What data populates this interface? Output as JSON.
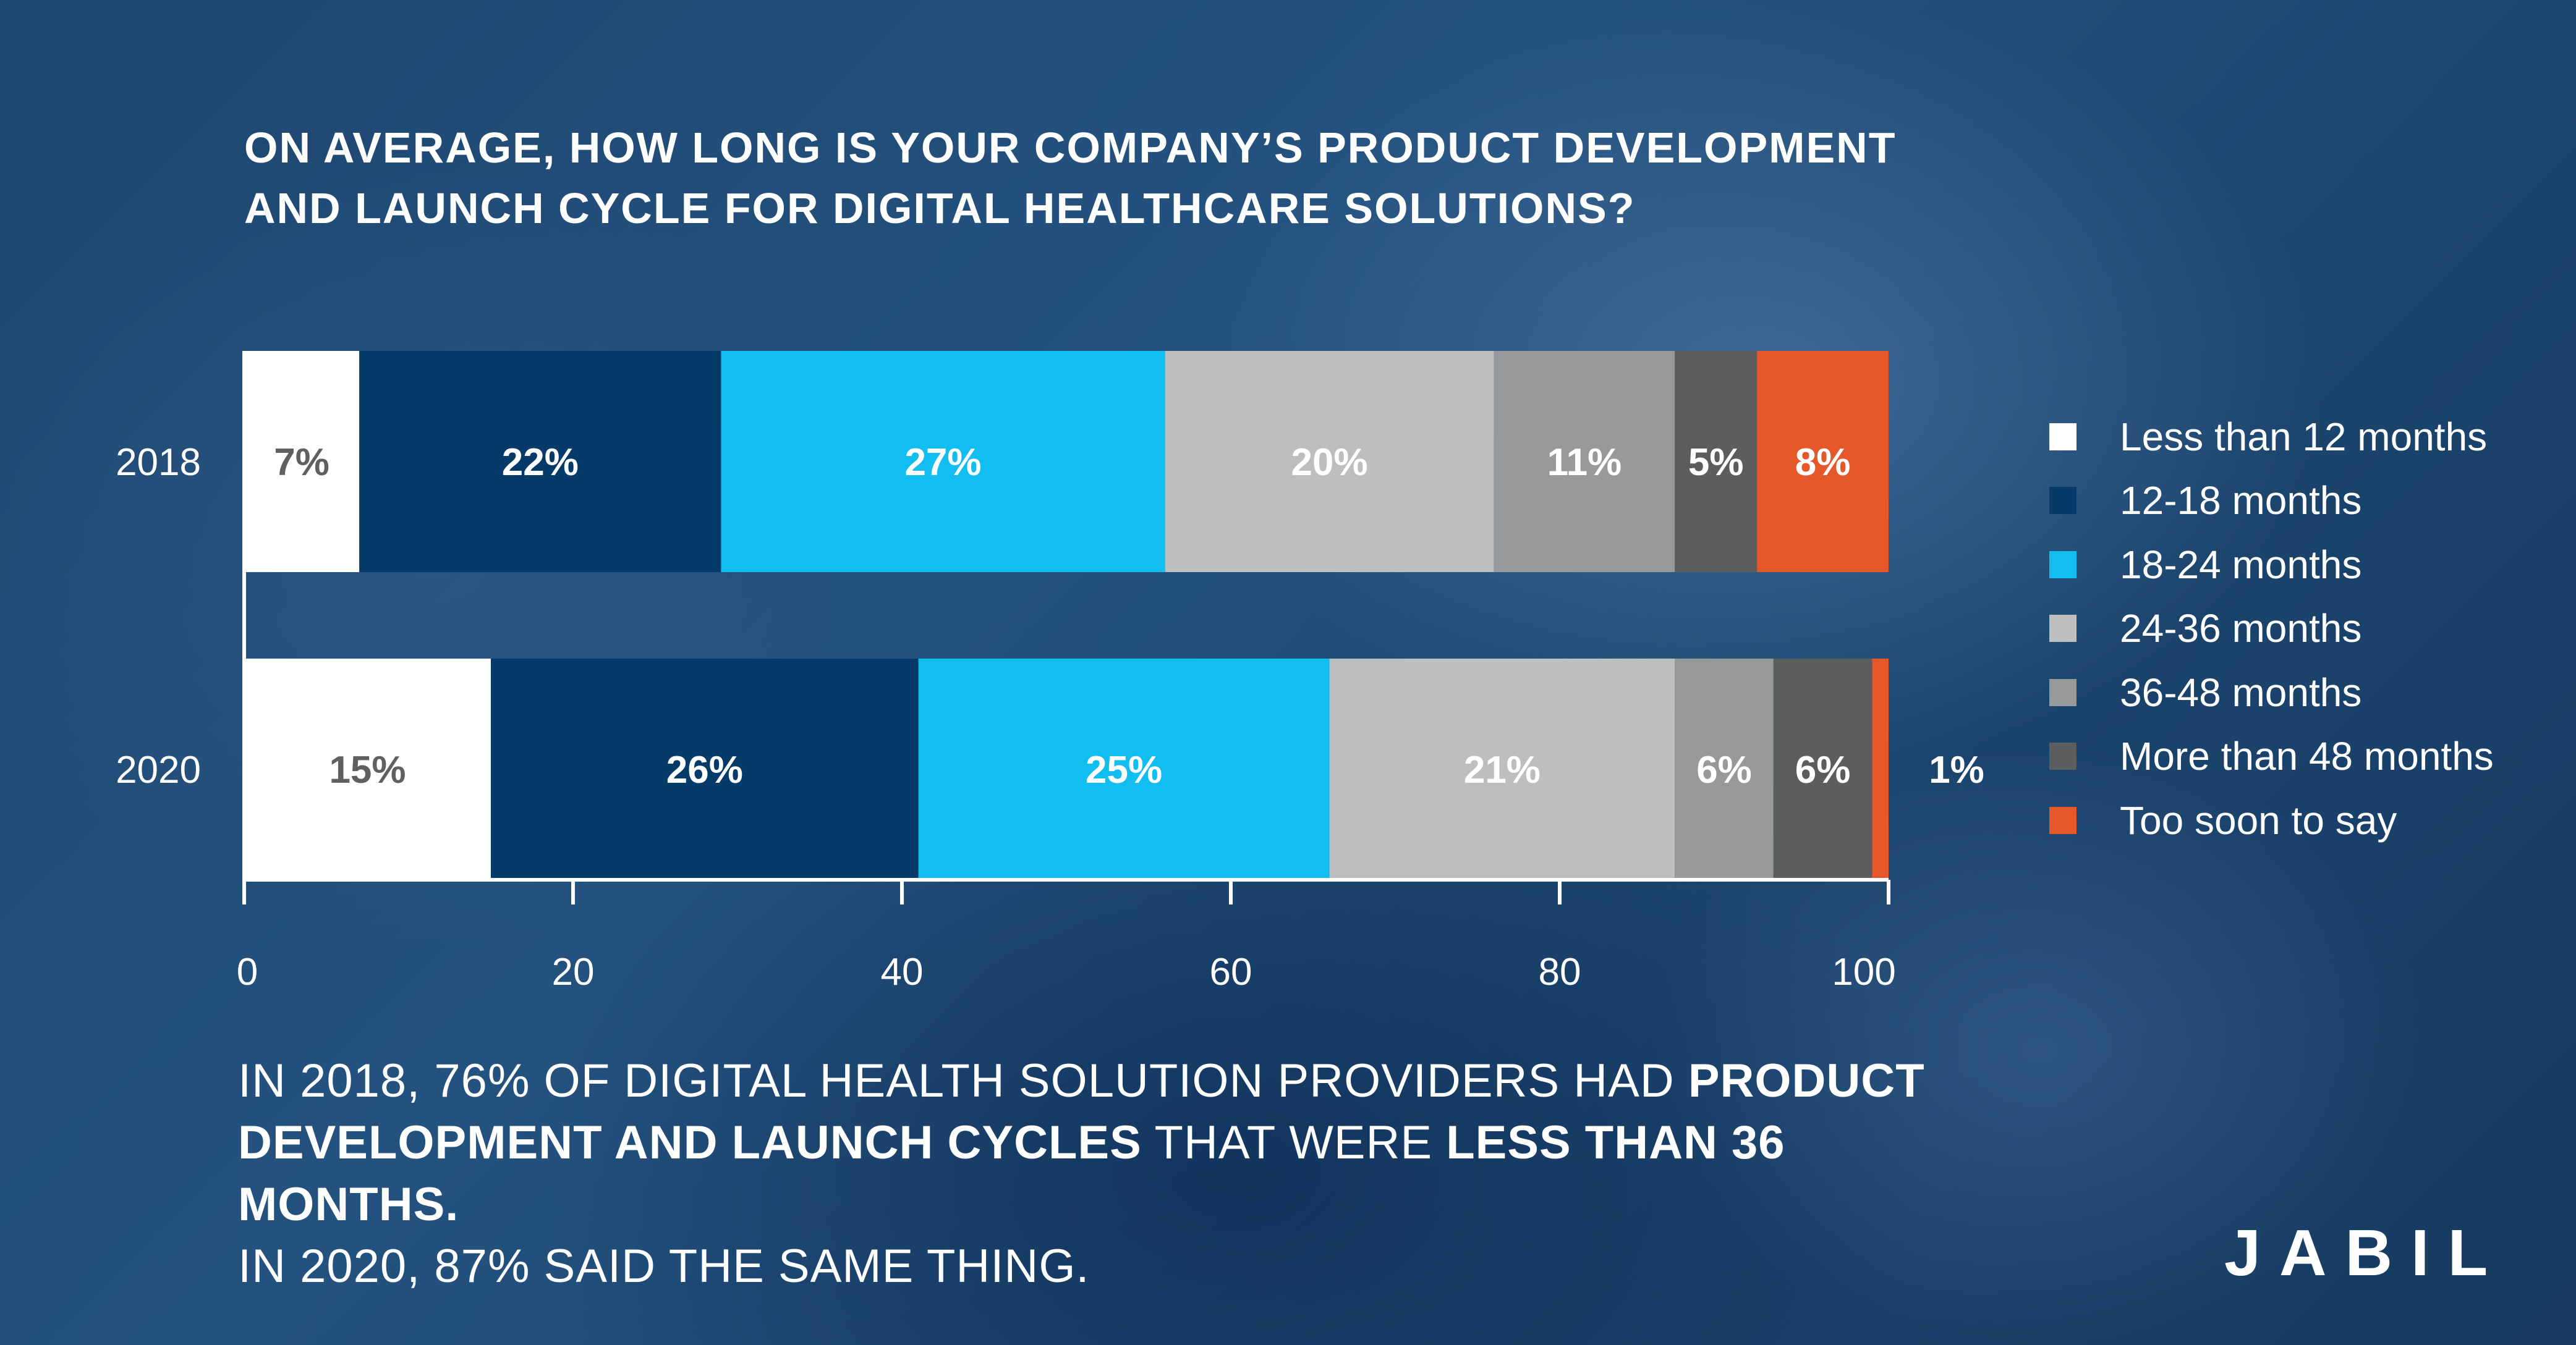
{
  "title": "ON AVERAGE, HOW LONG IS YOUR COMPANY’S PRODUCT DEVELOPMENT AND LAUNCH CYCLE FOR DIGITAL HEALTHCARE SOLUTIONS?",
  "chart_data": {
    "type": "bar",
    "orientation": "horizontal",
    "stacked": true,
    "title": "ON AVERAGE, HOW LONG IS YOUR COMPANY’S PRODUCT DEVELOPMENT AND LAUNCH CYCLE FOR DIGITAL HEALTHCARE SOLUTIONS?",
    "categories": [
      "2018",
      "2020"
    ],
    "series": [
      {
        "name": "Less than 12 months",
        "color": "#ffffff",
        "label_color": "#606060",
        "values": [
          7,
          15
        ],
        "labels": [
          "7%",
          "15%"
        ]
      },
      {
        "name": "12-18 months",
        "color": "#053a69",
        "label_color": "#ffffff",
        "values": [
          22,
          26
        ],
        "labels": [
          "22%",
          "26%"
        ]
      },
      {
        "name": "18-24 months",
        "color": "#12bdf0",
        "label_color": "#ffffff",
        "values": [
          27,
          25
        ],
        "labels": [
          "27%",
          "25%"
        ]
      },
      {
        "name": "24-36 months",
        "color": "#bcbec0",
        "label_color": "#ffffff",
        "values": [
          20,
          21
        ],
        "labels": [
          "20%",
          "21%"
        ]
      },
      {
        "name": "36-48 months",
        "color": "#98999a",
        "label_color": "#ffffff",
        "values": [
          11,
          6
        ],
        "labels": [
          "11%",
          "6%"
        ]
      },
      {
        "name": "More than 48 months",
        "color": "#5c5d5d",
        "label_color": "#ffffff",
        "values": [
          5,
          6
        ],
        "labels": [
          "5%",
          "6%"
        ]
      },
      {
        "name": "Too soon to say",
        "color": "#e4582a",
        "label_color": "#ffffff",
        "values": [
          8,
          1
        ],
        "labels": [
          "8%",
          "1%"
        ]
      }
    ],
    "xlim": [
      0,
      100
    ],
    "xticks": [
      "0",
      "20",
      "40",
      "60",
      "80",
      "100"
    ],
    "legend_position": "right",
    "grid": false
  },
  "footnote": {
    "part1": "IN 2018, 76% OF DIGITAL HEALTH SOLUTION PROVIDERS HAD ",
    "bold1": "PRODUCT DEVELOPMENT AND LAUNCH CYCLES",
    "part2": " THAT WERE ",
    "bold2": "LESS THAN 36 MONTHS.",
    "line3": "IN 2020, 87% SAID THE SAME THING."
  },
  "logo": "JABIL"
}
